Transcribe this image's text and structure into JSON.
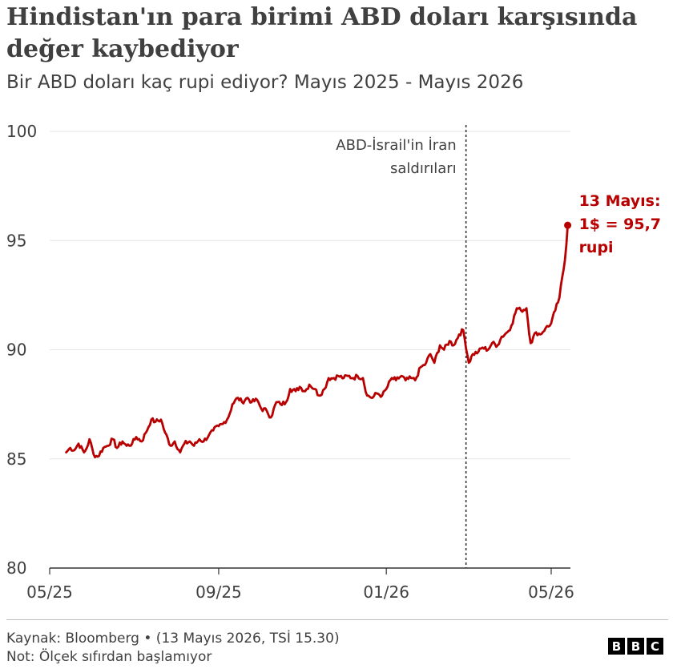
{
  "header": {
    "title": "Hindistan'ın para birimi ABD doları karşısında değer kaybediyor",
    "subtitle": "Bir ABD doları kaç rupi ediyor? Mayıs 2025 - Mayıs 2026"
  },
  "footer": {
    "source": "Kaynak: Bloomberg • (13 Mayıs 2026, TSİ 15.30)",
    "note": "Not: Ölçek sıfırdan başlamıyor",
    "logo": [
      "B",
      "B",
      "C"
    ]
  },
  "colors": {
    "line": "#b80000",
    "grid": "#e6e6e6",
    "text": "#404040"
  },
  "chart_data": {
    "type": "line",
    "title": "Hindistan'ın para birimi ABD doları karşısında değer kaybediyor",
    "subtitle": "Bir ABD doları kaç rupi ediyor? Mayıs 2025 - Mayıs 2026",
    "xlabel": "",
    "ylabel": "",
    "x_ticks": [
      "05/25",
      "09/25",
      "01/26",
      "05/26"
    ],
    "y_ticks": [
      80,
      85,
      90,
      95,
      100
    ],
    "ylim": [
      80,
      100
    ],
    "xlim": [
      "2025-05-01",
      "2026-05-15"
    ],
    "grid": true,
    "annotations": [
      {
        "x": "2026-02-28",
        "text_lines": [
          "ABD-İsrail'in İran",
          "saldırıları"
        ],
        "style": "dashed-vertical"
      }
    ],
    "end_label": {
      "x": "2026-05-13",
      "y": 95.7,
      "text_lines": [
        "13 Mayıs:",
        "1$ = 95,7",
        "rupi"
      ]
    },
    "series": [
      {
        "color": "#b80000",
        "points": [
          [
            "2025-05-13",
            85.3
          ],
          [
            "2025-05-16",
            85.5
          ],
          [
            "2025-05-19",
            85.4
          ],
          [
            "2025-05-22",
            85.7
          ],
          [
            "2025-05-26",
            85.3
          ],
          [
            "2025-05-28",
            85.5
          ],
          [
            "2025-05-30",
            85.9
          ],
          [
            "2025-06-02",
            85.2
          ],
          [
            "2025-06-05",
            85.1
          ],
          [
            "2025-06-09",
            85.5
          ],
          [
            "2025-06-12",
            85.6
          ],
          [
            "2025-06-16",
            85.9
          ],
          [
            "2025-06-19",
            85.5
          ],
          [
            "2025-06-23",
            85.8
          ],
          [
            "2025-06-26",
            85.6
          ],
          [
            "2025-06-30",
            85.7
          ],
          [
            "2025-07-03",
            86.0
          ],
          [
            "2025-07-07",
            85.8
          ],
          [
            "2025-07-10",
            86.2
          ],
          [
            "2025-07-14",
            86.8
          ],
          [
            "2025-07-17",
            86.7
          ],
          [
            "2025-07-21",
            86.8
          ],
          [
            "2025-07-24",
            86.2
          ],
          [
            "2025-07-28",
            85.6
          ],
          [
            "2025-07-31",
            85.8
          ],
          [
            "2025-08-04",
            85.3
          ],
          [
            "2025-08-07",
            85.7
          ],
          [
            "2025-08-11",
            85.8
          ],
          [
            "2025-08-14",
            85.6
          ],
          [
            "2025-08-18",
            85.9
          ],
          [
            "2025-08-21",
            85.8
          ],
          [
            "2025-08-25",
            86.1
          ],
          [
            "2025-08-28",
            86.3
          ],
          [
            "2025-09-01",
            86.5
          ],
          [
            "2025-09-04",
            86.6
          ],
          [
            "2025-09-08",
            86.9
          ],
          [
            "2025-09-11",
            87.5
          ],
          [
            "2025-09-15",
            87.8
          ],
          [
            "2025-09-18",
            87.6
          ],
          [
            "2025-09-22",
            87.8
          ],
          [
            "2025-09-25",
            87.6
          ],
          [
            "2025-09-29",
            87.7
          ],
          [
            "2025-10-02",
            87.3
          ],
          [
            "2025-10-06",
            87.2
          ],
          [
            "2025-10-09",
            86.9
          ],
          [
            "2025-10-13",
            87.6
          ],
          [
            "2025-10-16",
            87.5
          ],
          [
            "2025-10-20",
            87.6
          ],
          [
            "2025-10-23",
            88.2
          ],
          [
            "2025-10-27",
            88.1
          ],
          [
            "2025-10-30",
            88.3
          ],
          [
            "2025-11-03",
            88.1
          ],
          [
            "2025-11-06",
            88.4
          ],
          [
            "2025-11-10",
            88.2
          ],
          [
            "2025-11-13",
            87.9
          ],
          [
            "2025-11-17",
            88.2
          ],
          [
            "2025-11-20",
            88.7
          ],
          [
            "2025-11-24",
            88.7
          ],
          [
            "2025-11-27",
            88.8
          ],
          [
            "2025-12-01",
            88.7
          ],
          [
            "2025-12-04",
            88.8
          ],
          [
            "2025-12-08",
            88.7
          ],
          [
            "2025-12-11",
            88.8
          ],
          [
            "2025-12-15",
            88.7
          ],
          [
            "2025-12-18",
            87.9
          ],
          [
            "2025-12-22",
            87.8
          ],
          [
            "2025-12-25",
            88.0
          ],
          [
            "2025-12-29",
            87.9
          ],
          [
            "2026-01-01",
            88.2
          ],
          [
            "2026-01-05",
            88.7
          ],
          [
            "2026-01-08",
            88.6
          ],
          [
            "2026-01-12",
            88.8
          ],
          [
            "2026-01-15",
            88.6
          ],
          [
            "2026-01-19",
            88.7
          ],
          [
            "2026-01-22",
            88.6
          ],
          [
            "2026-01-26",
            89.2
          ],
          [
            "2026-01-29",
            89.3
          ],
          [
            "2026-02-02",
            89.8
          ],
          [
            "2026-02-05",
            89.4
          ],
          [
            "2026-02-09",
            90.2
          ],
          [
            "2026-02-12",
            90.0
          ],
          [
            "2026-02-16",
            90.4
          ],
          [
            "2026-02-19",
            90.2
          ],
          [
            "2026-02-23",
            90.7
          ],
          [
            "2026-02-26",
            90.9
          ],
          [
            "2026-03-02",
            89.4
          ],
          [
            "2026-03-05",
            89.8
          ],
          [
            "2026-03-09",
            89.9
          ],
          [
            "2026-03-12",
            90.1
          ],
          [
            "2026-03-16",
            90.0
          ],
          [
            "2026-03-19",
            90.3
          ],
          [
            "2026-03-23",
            90.2
          ],
          [
            "2026-03-26",
            90.6
          ],
          [
            "2026-03-30",
            90.8
          ],
          [
            "2026-04-02",
            91.1
          ],
          [
            "2026-04-06",
            91.9
          ],
          [
            "2026-04-09",
            91.8
          ],
          [
            "2026-04-13",
            91.9
          ],
          [
            "2026-04-16",
            90.3
          ],
          [
            "2026-04-20",
            90.8
          ],
          [
            "2026-04-23",
            90.7
          ],
          [
            "2026-04-27",
            91.0
          ],
          [
            "2026-04-30",
            91.1
          ],
          [
            "2026-05-04",
            91.8
          ],
          [
            "2026-05-07",
            92.4
          ],
          [
            "2026-05-11",
            94.1
          ],
          [
            "2026-05-13",
            95.7
          ]
        ]
      }
    ]
  }
}
